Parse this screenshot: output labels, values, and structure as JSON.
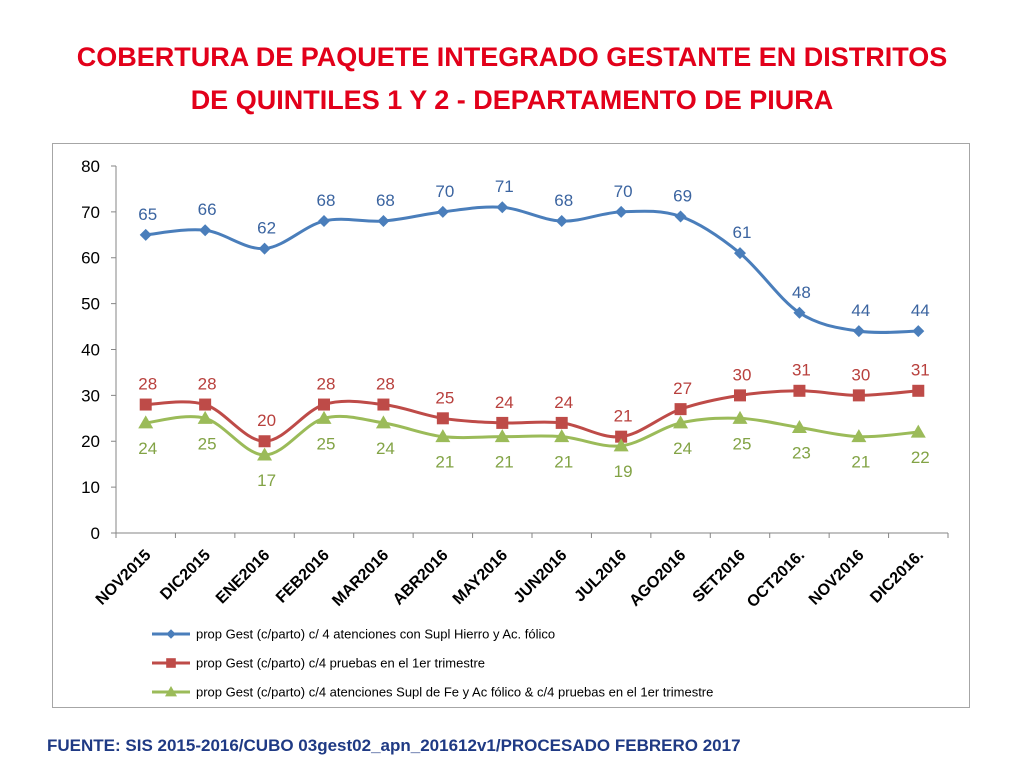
{
  "title": {
    "line1": "COBERTURA DE PAQUETE INTEGRADO GESTANTE EN DISTRITOS",
    "line2": "DE QUINTILES 1 Y 2 - DEPARTAMENTO DE PIURA"
  },
  "footer": "FUENTE: SIS 2015-2016/CUBO 03gest02_apn_201612v1/PROCESADO FEBRERO 2017",
  "colors": {
    "title": "#E2001A",
    "footer": "#1F3A84",
    "axis": "#868686",
    "tick_text": "#000000",
    "legend_text": "#000000"
  },
  "chart_data": {
    "type": "line",
    "categories": [
      "NOV2015",
      "DIC2015",
      "ENE2016",
      "FEB2016",
      "MAR2016",
      "ABR2016",
      "MAY2016",
      "JUN2016",
      "JUL2016",
      "AGO2016",
      "SET2016",
      "OCT2016.",
      "NOV2016",
      "DIC2016."
    ],
    "ylim": [
      0,
      80
    ],
    "yticks": [
      0,
      10,
      20,
      30,
      40,
      50,
      60,
      70,
      80
    ],
    "grid": false,
    "legend_position": "bottom",
    "series": [
      {
        "name": "prop Gest (c/parto) c/ 4 atenciones con Supl Hierro y Ac. fólico",
        "values": [
          65,
          66,
          62,
          68,
          68,
          70,
          71,
          68,
          70,
          69,
          61,
          48,
          44,
          44
        ],
        "color": "#4A7EBB",
        "label_color": "#3B64A0",
        "marker": "diamond",
        "label_position": "above"
      },
      {
        "name": "prop Gest (c/parto) c/4 pruebas en el 1er trimestre",
        "values": [
          28,
          28,
          20,
          28,
          28,
          25,
          24,
          24,
          21,
          27,
          30,
          31,
          30,
          31
        ],
        "color": "#BE4B48",
        "label_color": "#B8403D",
        "marker": "square",
        "label_position": "above"
      },
      {
        "name": "prop Gest (c/parto) c/4 atenciones Supl de Fe y Ac fólico & c/4 pruebas en el 1er trimestre",
        "values": [
          24,
          25,
          17,
          25,
          24,
          21,
          21,
          21,
          19,
          24,
          25,
          23,
          21,
          22
        ],
        "color": "#9BBB59",
        "label_color": "#82A345",
        "marker": "triangle",
        "label_position": "below"
      }
    ]
  }
}
